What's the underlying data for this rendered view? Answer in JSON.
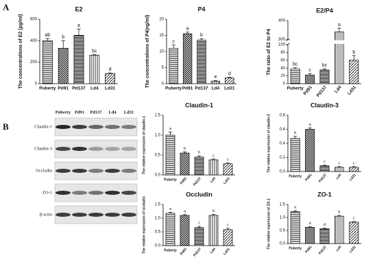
{
  "panel_labels": [
    "A",
    "B"
  ],
  "blot": {
    "columns": [
      "Puberty",
      "Pd91",
      "Pd137",
      "Ld4",
      "Ld31"
    ],
    "rows": [
      "Claudin-1",
      "Claudin-3",
      "Occludin",
      "ZO-1",
      "β-actin"
    ]
  },
  "chart_data": [
    {
      "type": "bar",
      "title": "E2",
      "y_label": "The concentrations of E2 (pg/ml)",
      "categories": [
        "Puberty",
        "Pd91",
        "Pd137",
        "Ld4",
        "Ld31"
      ],
      "values": [
        400,
        330,
        450,
        265,
        95
      ],
      "errors": [
        20,
        70,
        60,
        5,
        5
      ],
      "annotations": [
        "ab",
        "b",
        "a",
        "bc",
        "d"
      ],
      "ylim": [
        0,
        600
      ],
      "yticks": [
        0,
        200,
        400,
        600
      ],
      "color": "#000000"
    },
    {
      "type": "bar",
      "title": "P4",
      "y_label": "The concentrations of P4(ng/ml)",
      "categories": [
        "Puberty",
        "Pd91",
        "Pd137",
        "Ld4",
        "Ld31"
      ],
      "values": [
        11,
        15.5,
        13.5,
        0.8,
        1.8
      ],
      "errors": [
        1,
        0.5,
        0.5,
        0.2,
        0.2
      ],
      "annotations": [
        "c",
        "a",
        "b",
        "e",
        "d"
      ],
      "ylim": [
        0,
        20
      ],
      "yticks": [
        0,
        5,
        10,
        15,
        20
      ],
      "color": "#000000"
    },
    {
      "type": "bar",
      "title": "E2/P4",
      "y_label": "The ratio of E2 to P4",
      "categories": [
        "Puberty",
        "Pd91",
        "Pd137",
        "Ld4",
        "Ld31"
      ],
      "values": [
        38,
        22,
        35,
        340,
        60
      ],
      "errors": [
        3,
        4,
        3,
        20,
        12
      ],
      "annotations": [
        "bc",
        "c",
        "bc",
        "a",
        "b"
      ],
      "ylim": [
        0,
        400
      ],
      "axis_break": [
        100,
        300
      ],
      "yticks": [
        0,
        20,
        40,
        60,
        80,
        100,
        300,
        400
      ],
      "color": "#000000"
    },
    {
      "type": "bar",
      "title": "Claudin-1",
      "y_label": "The relative expression of claudin-1",
      "categories": [
        "Puberty",
        "Pd91",
        "Pd137",
        "Ld4",
        "Ld31"
      ],
      "values": [
        1.0,
        0.55,
        0.45,
        0.38,
        0.28
      ],
      "errors": [
        0.08,
        0.03,
        0.03,
        0.02,
        0.02
      ],
      "annotations": [
        "a",
        "b",
        "b",
        "c",
        "c"
      ],
      "ylim": [
        0,
        1.5
      ],
      "yticks": [
        {
          "value": 0,
          "label": "0.0"
        },
        0.5,
        {
          "value": 1,
          "label": "1.0"
        },
        1.5
      ],
      "color": "#000000"
    },
    {
      "type": "bar",
      "title": "Claudin-3",
      "y_label": "The relative expression of claudin-3",
      "categories": [
        "Puberty",
        "Pd91",
        "Pd137",
        "Ld4",
        "Ld31"
      ],
      "values": [
        0.47,
        0.6,
        0.08,
        0.06,
        0.06
      ],
      "errors": [
        0.03,
        0.02,
        0.01,
        0.01,
        0.01
      ],
      "annotations": [
        "b",
        "a",
        "c",
        "c",
        "c"
      ],
      "ylim": [
        0,
        0.8
      ],
      "yticks": [
        {
          "value": 0,
          "label": "0.0"
        },
        0.2,
        0.4,
        0.6,
        0.8
      ],
      "color": "#000000"
    },
    {
      "type": "bar",
      "title": "Occludin",
      "y_label": "The relative expression of occludin",
      "categories": [
        "Puberty",
        "Pd91",
        "Pd137",
        "Ld4",
        "Ld31"
      ],
      "values": [
        1.18,
        1.1,
        0.65,
        1.1,
        0.58
      ],
      "errors": [
        0.03,
        0.03,
        0.05,
        0.04,
        0.05
      ],
      "annotations": [
        "a",
        "a",
        "c",
        "b",
        "c"
      ],
      "ylim": [
        0,
        1.5
      ],
      "yticks": [
        {
          "value": 0,
          "label": "0.0"
        },
        0.5,
        {
          "value": 1,
          "label": "1.0"
        },
        1.5
      ],
      "color": "#000000"
    },
    {
      "type": "bar",
      "title": "ZO-1",
      "y_label": "The relative expression of ZO-1",
      "categories": [
        "Puberty",
        "Pd91",
        "Pd137",
        "Ld4",
        "Ld31"
      ],
      "values": [
        1.22,
        0.62,
        0.57,
        1.05,
        0.82
      ],
      "errors": [
        0.04,
        0.02,
        0.02,
        0.03,
        0.02
      ],
      "annotations": [
        "a",
        "d",
        "d",
        "b",
        "c"
      ],
      "ylim": [
        0,
        1.5
      ],
      "yticks": [
        {
          "value": 0,
          "label": "0.0"
        },
        0.5,
        {
          "value": 1,
          "label": "1.0"
        },
        1.5
      ],
      "color": "#000000"
    }
  ]
}
